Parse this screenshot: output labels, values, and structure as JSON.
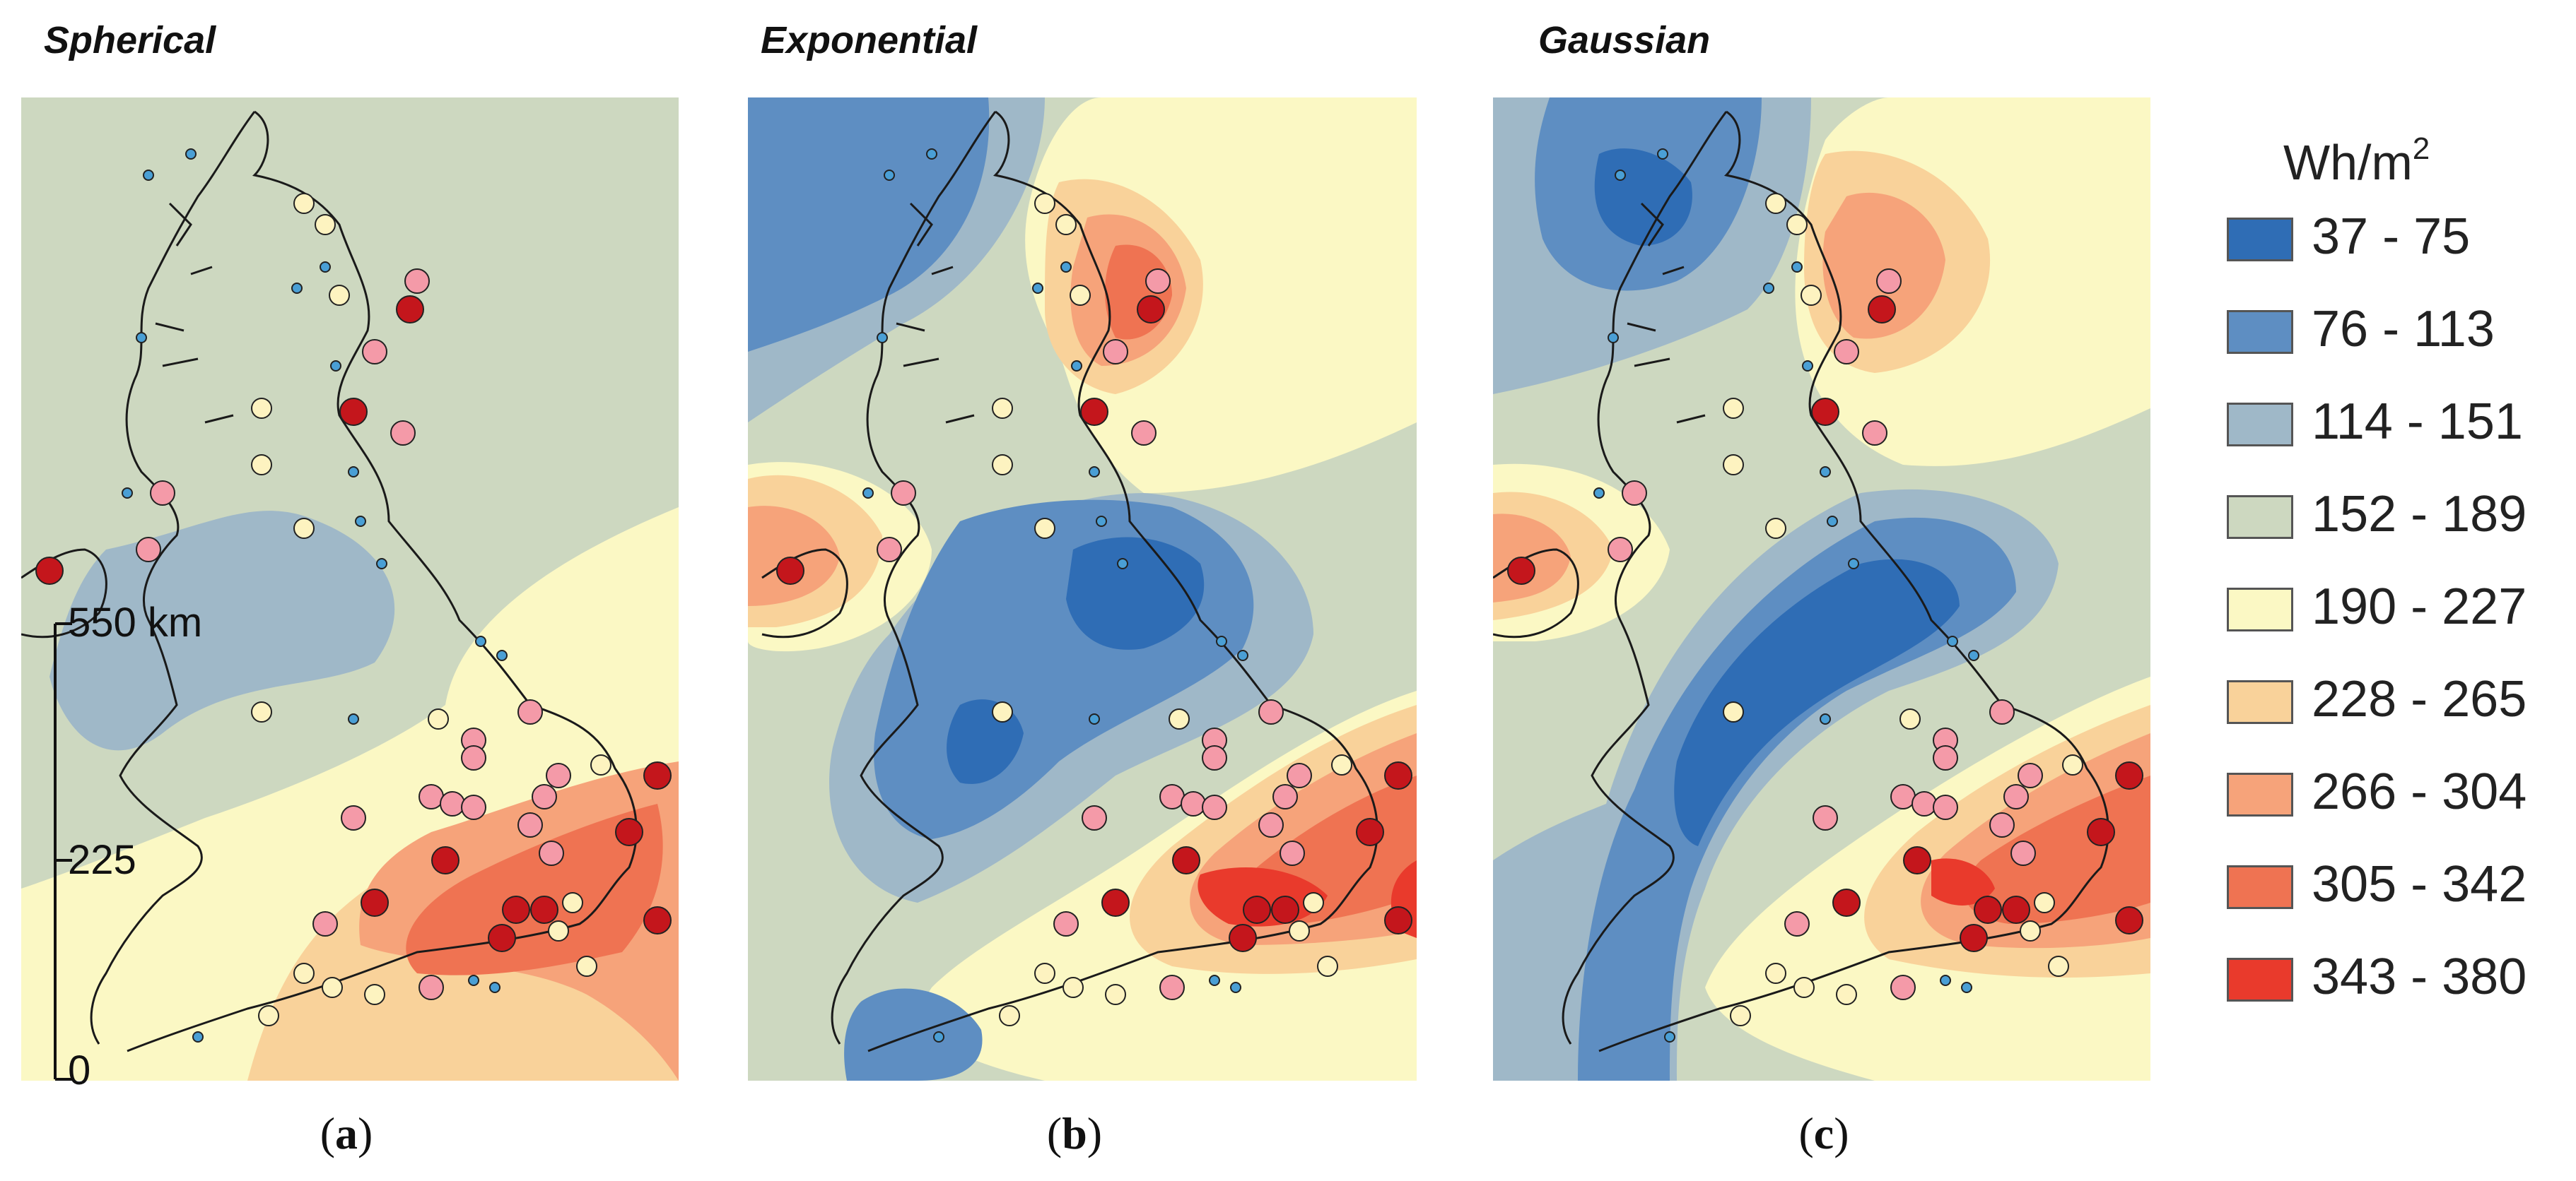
{
  "panels": [
    {
      "title": "Spherical",
      "caption_letter": "a"
    },
    {
      "title": "Exponential",
      "caption_letter": "b"
    },
    {
      "title": "Gaussian",
      "caption_letter": "c"
    }
  ],
  "legend": {
    "title": "Wh/m",
    "title_sup": "2",
    "classes": [
      {
        "label": "37 - 75",
        "color": "#2f6db5"
      },
      {
        "label": "76 - 113",
        "color": "#5e8ec2"
      },
      {
        "label": "114 - 151",
        "color": "#9fb8c8"
      },
      {
        "label": "152 - 189",
        "color": "#cdd8c0"
      },
      {
        "label": "190 - 227",
        "color": "#fbf8c4"
      },
      {
        "label": "228 - 265",
        "color": "#f9d29a"
      },
      {
        "label": "266 - 304",
        "color": "#f6a37a"
      },
      {
        "label": "305 - 342",
        "color": "#ef7352"
      },
      {
        "label": "343 - 380",
        "color": "#e93a2c"
      }
    ]
  },
  "scale_bar": {
    "top_label": "550 km",
    "mid_label": "225",
    "bottom_label": "0"
  },
  "colors": {
    "coast": "#1a1a1a",
    "marker_small": "#4a9fd5",
    "marker_cream": "#fdf3c0",
    "marker_pink": "#f49aa8",
    "marker_red": "#c4161c"
  }
}
